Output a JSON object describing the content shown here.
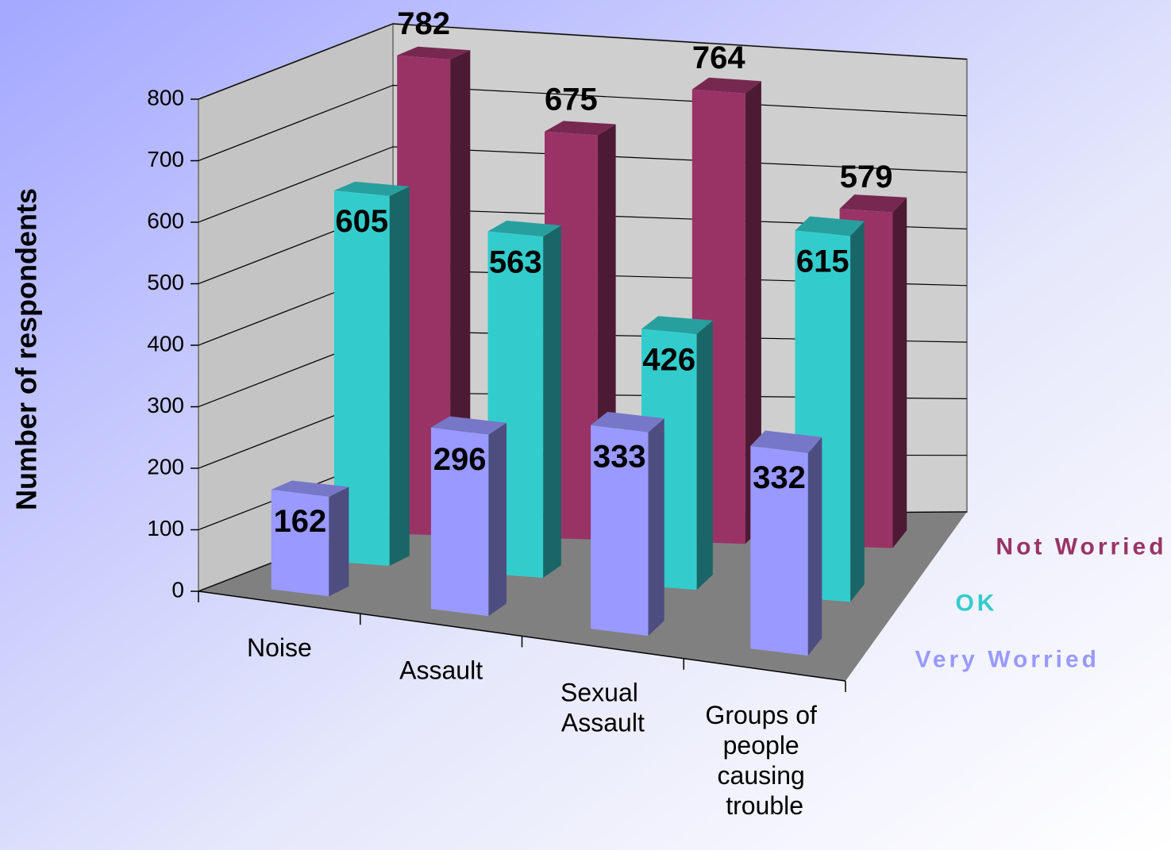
{
  "chart_data": {
    "type": "bar3d",
    "y_axis_label": "Number of respondents",
    "categories": [
      "Noise",
      "Assault",
      "Sexual Assault",
      "Groups of people causing trouble"
    ],
    "series": [
      {
        "name": "Very Worried",
        "color": "#9999ff",
        "values": [
          162,
          296,
          333,
          332
        ]
      },
      {
        "name": "OK",
        "color": "#33cccc",
        "values": [
          605,
          563,
          426,
          615
        ]
      },
      {
        "name": "Not Worried",
        "color": "#993366",
        "values": [
          782,
          675,
          764,
          579
        ]
      }
    ],
    "ylim": [
      0,
      800
    ],
    "yticks": [
      0,
      100,
      200,
      300,
      400,
      500,
      600,
      700,
      800
    ],
    "grid": true
  }
}
